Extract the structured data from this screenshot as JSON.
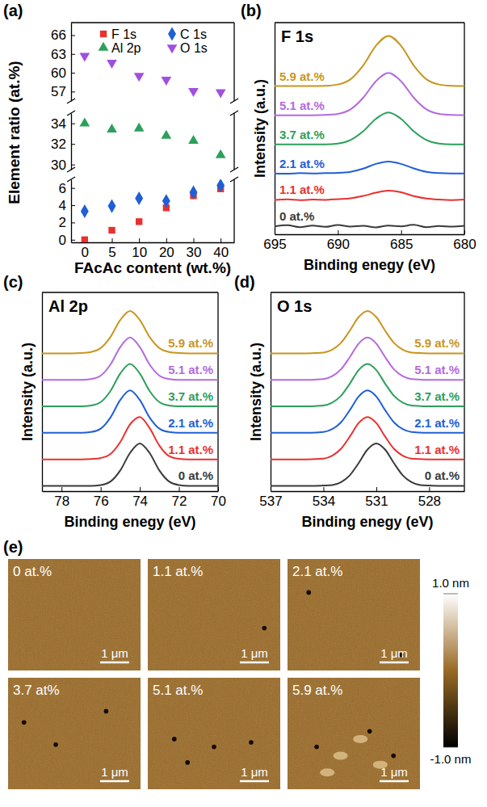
{
  "chart_data": [
    {
      "panel": "(a)",
      "type": "scatter",
      "x_label": "FAcAc content (wt.%)",
      "y_label": "Element ratio (at.%)",
      "categories": [
        "0",
        "5",
        "10",
        "20",
        "30",
        "40"
      ],
      "y_segments": [
        {
          "ylim": [
            55.5,
            68
          ],
          "yticks": [
            57,
            60,
            63,
            66
          ]
        },
        {
          "ylim": [
            29.5,
            35
          ],
          "yticks": [
            30,
            32,
            34
          ]
        },
        {
          "ylim": [
            -0.3,
            7
          ],
          "yticks": [
            0,
            2,
            4,
            6
          ]
        }
      ],
      "legend": "top",
      "series": [
        {
          "name": "F 1s",
          "color": "#e8312f",
          "marker": "square",
          "values": [
            0,
            1.1,
            2.1,
            3.7,
            5.1,
            5.9
          ]
        },
        {
          "name": "C 1s",
          "color": "#1f5fd6",
          "marker": "diamond",
          "values": [
            3.3,
            3.9,
            4.8,
            4.5,
            5.5,
            6.3
          ]
        },
        {
          "name": "Al 2p",
          "color": "#2ca05a",
          "marker": "triangle-up",
          "values": [
            34.0,
            33.4,
            33.5,
            32.8,
            32.3,
            30.9
          ]
        },
        {
          "name": "O 1s",
          "color": "#a050e0",
          "marker": "triangle-down",
          "values": [
            62.7,
            61.6,
            59.5,
            58.9,
            57.1,
            56.9
          ]
        }
      ]
    },
    {
      "panel": "(b)",
      "type": "line",
      "title": "F 1s",
      "x_label": "Binding enegy (eV)",
      "y_label": "Intensity (a.u.)",
      "tick_labels": "x",
      "x": [
        695,
        694,
        693,
        692,
        691,
        690,
        689,
        688,
        687,
        686,
        685,
        684,
        683,
        682,
        681,
        680
      ],
      "xlim": [
        695,
        680
      ],
      "xticks": [
        695,
        690,
        685,
        680
      ],
      "ylim": [
        0,
        8
      ],
      "series": [
        {
          "name": "0 at.%",
          "color": "#3a3a3a",
          "values": [
            0.3,
            0.34,
            0.27,
            0.33,
            0.28,
            0.35,
            0.29,
            0.32,
            0.26,
            0.33,
            0.3,
            0.36,
            0.27,
            0.31,
            0.29,
            0.32
          ]
        },
        {
          "name": "1.1 at.%",
          "color": "#e8312f",
          "values": [
            1.3,
            1.32,
            1.29,
            1.31,
            1.3,
            1.33,
            1.36,
            1.45,
            1.57,
            1.65,
            1.59,
            1.44,
            1.35,
            1.31,
            1.29,
            1.31
          ]
        },
        {
          "name": "2.1 at.%",
          "color": "#1f5fd6",
          "values": [
            2.3,
            2.29,
            2.31,
            2.3,
            2.31,
            2.32,
            2.36,
            2.48,
            2.66,
            2.75,
            2.66,
            2.49,
            2.36,
            2.31,
            2.3,
            2.3
          ]
        },
        {
          "name": "3.7 at.%",
          "color": "#2ca05a",
          "values": [
            3.4,
            3.4,
            3.4,
            3.4,
            3.4,
            3.43,
            3.56,
            3.89,
            4.36,
            4.6,
            4.36,
            3.89,
            3.56,
            3.43,
            3.4,
            3.4
          ]
        },
        {
          "name": "5.1 at.%",
          "color": "#b36ae2",
          "values": [
            4.5,
            4.5,
            4.5,
            4.5,
            4.51,
            4.55,
            4.72,
            5.16,
            5.78,
            6.1,
            5.78,
            5.16,
            4.72,
            4.55,
            4.51,
            4.5
          ]
        },
        {
          "name": "5.9 at.%",
          "color": "#c8961e",
          "values": [
            5.6,
            5.6,
            5.6,
            5.6,
            5.61,
            5.66,
            5.86,
            6.38,
            7.12,
            7.5,
            7.12,
            6.38,
            5.86,
            5.66,
            5.61,
            5.6
          ]
        }
      ]
    },
    {
      "panel": "(c)",
      "type": "line",
      "title": "Al 2p",
      "x_label": "Binding enegy (eV)",
      "y_label": "Intensity (a.u.)",
      "tick_labels": "x",
      "x": [
        79,
        78.5,
        78,
        77.5,
        77,
        76.5,
        76,
        75.5,
        75,
        74.5,
        74,
        73.5,
        73,
        72.5,
        72,
        71.5,
        71,
        70.5,
        70
      ],
      "xlim": [
        79,
        70
      ],
      "xticks": [
        78,
        76,
        74,
        72,
        70
      ],
      "ylim": [
        0,
        7.5
      ],
      "series": [
        {
          "name": "0 at.%",
          "color": "#3a3a3a",
          "values": [
            0.2,
            0.2,
            0.2,
            0.2,
            0.2,
            0.2,
            0.23,
            0.36,
            0.78,
            1.44,
            1.8,
            1.44,
            0.78,
            0.36,
            0.23,
            0.2,
            0.2,
            0.2,
            0.2
          ]
        },
        {
          "name": "1.1 at.%",
          "color": "#e8312f",
          "values": [
            1.2,
            1.2,
            1.2,
            1.2,
            1.2,
            1.21,
            1.25,
            1.4,
            1.85,
            2.52,
            2.8,
            2.38,
            1.72,
            1.32,
            1.22,
            1.2,
            1.2,
            1.2,
            1.2
          ]
        },
        {
          "name": "2.1 at.%",
          "color": "#1f5fd6",
          "values": [
            2.2,
            2.2,
            2.2,
            2.2,
            2.2,
            2.23,
            2.36,
            2.78,
            3.44,
            3.8,
            3.44,
            2.78,
            2.36,
            2.23,
            2.2,
            2.2,
            2.2,
            2.2,
            2.2
          ]
        },
        {
          "name": "3.7 at.%",
          "color": "#2ca05a",
          "values": [
            3.2,
            3.2,
            3.2,
            3.2,
            3.2,
            3.23,
            3.36,
            3.78,
            4.44,
            4.8,
            4.44,
            3.78,
            3.36,
            3.23,
            3.2,
            3.2,
            3.2,
            3.2,
            3.2
          ]
        },
        {
          "name": "5.1 at.%",
          "color": "#b36ae2",
          "values": [
            4.2,
            4.2,
            4.2,
            4.2,
            4.2,
            4.23,
            4.36,
            4.78,
            5.44,
            5.8,
            5.44,
            4.78,
            4.36,
            4.23,
            4.2,
            4.2,
            4.2,
            4.2,
            4.2
          ]
        },
        {
          "name": "5.9 at.%",
          "color": "#c8961e",
          "values": [
            5.2,
            5.2,
            5.2,
            5.2,
            5.21,
            5.25,
            5.4,
            5.82,
            6.46,
            6.8,
            6.46,
            5.82,
            5.4,
            5.25,
            5.21,
            5.2,
            5.2,
            5.2,
            5.2
          ]
        }
      ]
    },
    {
      "panel": "(d)",
      "type": "line",
      "title": "O 1s",
      "x_label": "Binding enegy (eV)",
      "y_label": "Intensity (a.u.)",
      "tick_labels": "x",
      "x": [
        537,
        536.5,
        536,
        535.5,
        535,
        534.5,
        534,
        533.5,
        533,
        532.5,
        532,
        531.5,
        531,
        530.5,
        530,
        529.5,
        529,
        528.5,
        528,
        527.5,
        527,
        526.5,
        526
      ],
      "xlim": [
        537,
        526
      ],
      "xticks": [
        537,
        534,
        531,
        528
      ],
      "ylim": [
        0,
        7.5
      ],
      "series": [
        {
          "name": "0 at.%",
          "color": "#3a3a3a",
          "values": [
            0.2,
            0.2,
            0.2,
            0.2,
            0.2,
            0.2,
            0.21,
            0.23,
            0.34,
            0.6,
            1.06,
            1.57,
            1.8,
            1.57,
            1.06,
            0.6,
            0.34,
            0.23,
            0.21,
            0.2,
            0.2,
            0.2,
            0.2
          ]
        },
        {
          "name": "1.1 at.%",
          "color": "#e8312f",
          "values": [
            1.2,
            1.2,
            1.2,
            1.2,
            1.2,
            1.21,
            1.23,
            1.34,
            1.6,
            2.06,
            2.57,
            2.8,
            2.57,
            2.06,
            1.6,
            1.34,
            1.23,
            1.21,
            1.2,
            1.2,
            1.2,
            1.2,
            1.2
          ]
        },
        {
          "name": "2.1 at.%",
          "color": "#1f5fd6",
          "values": [
            2.2,
            2.2,
            2.2,
            2.2,
            2.2,
            2.21,
            2.23,
            2.34,
            2.6,
            3.06,
            3.57,
            3.8,
            3.57,
            3.06,
            2.6,
            2.34,
            2.23,
            2.21,
            2.2,
            2.2,
            2.2,
            2.2,
            2.2
          ]
        },
        {
          "name": "3.7 at.%",
          "color": "#2ca05a",
          "values": [
            3.2,
            3.2,
            3.2,
            3.2,
            3.2,
            3.21,
            3.23,
            3.34,
            3.6,
            4.06,
            4.57,
            4.8,
            4.57,
            4.06,
            3.6,
            3.34,
            3.23,
            3.21,
            3.2,
            3.2,
            3.2,
            3.2,
            3.2
          ]
        },
        {
          "name": "5.1 at.%",
          "color": "#b36ae2",
          "values": [
            4.2,
            4.2,
            4.2,
            4.2,
            4.2,
            4.21,
            4.23,
            4.34,
            4.6,
            5.06,
            5.57,
            5.8,
            5.57,
            5.06,
            4.6,
            4.34,
            4.23,
            4.21,
            4.2,
            4.2,
            4.2,
            4.2,
            4.2
          ]
        },
        {
          "name": "5.9 at.%",
          "color": "#c8961e",
          "values": [
            5.2,
            5.2,
            5.2,
            5.2,
            5.2,
            5.21,
            5.23,
            5.34,
            5.6,
            6.06,
            6.57,
            6.8,
            6.57,
            6.06,
            5.6,
            5.34,
            5.23,
            5.21,
            5.2,
            5.2,
            5.2,
            5.2,
            5.2
          ]
        }
      ]
    }
  ],
  "afm_images": {
    "panel": "(e)",
    "images": [
      {
        "label": "0 at.%",
        "scale_bar": "1 μm"
      },
      {
        "label": "1.1 at.%",
        "scale_bar": "1 μm"
      },
      {
        "label": "2.1 at.%",
        "scale_bar": "1 μm"
      },
      {
        "label": "3.7 at%",
        "scale_bar": "1 μm"
      },
      {
        "label": "5.1 at.%",
        "scale_bar": "1 μm"
      },
      {
        "label": "5.9 at.%",
        "scale_bar": "1 μm"
      }
    ],
    "colorbar": {
      "range": [
        -1.0,
        1.0
      ],
      "ticks": [
        {
          "value": 1.0,
          "label": "1.0 nm"
        },
        {
          "value": -1.0,
          "label": "-1.0 nm"
        }
      ]
    }
  }
}
